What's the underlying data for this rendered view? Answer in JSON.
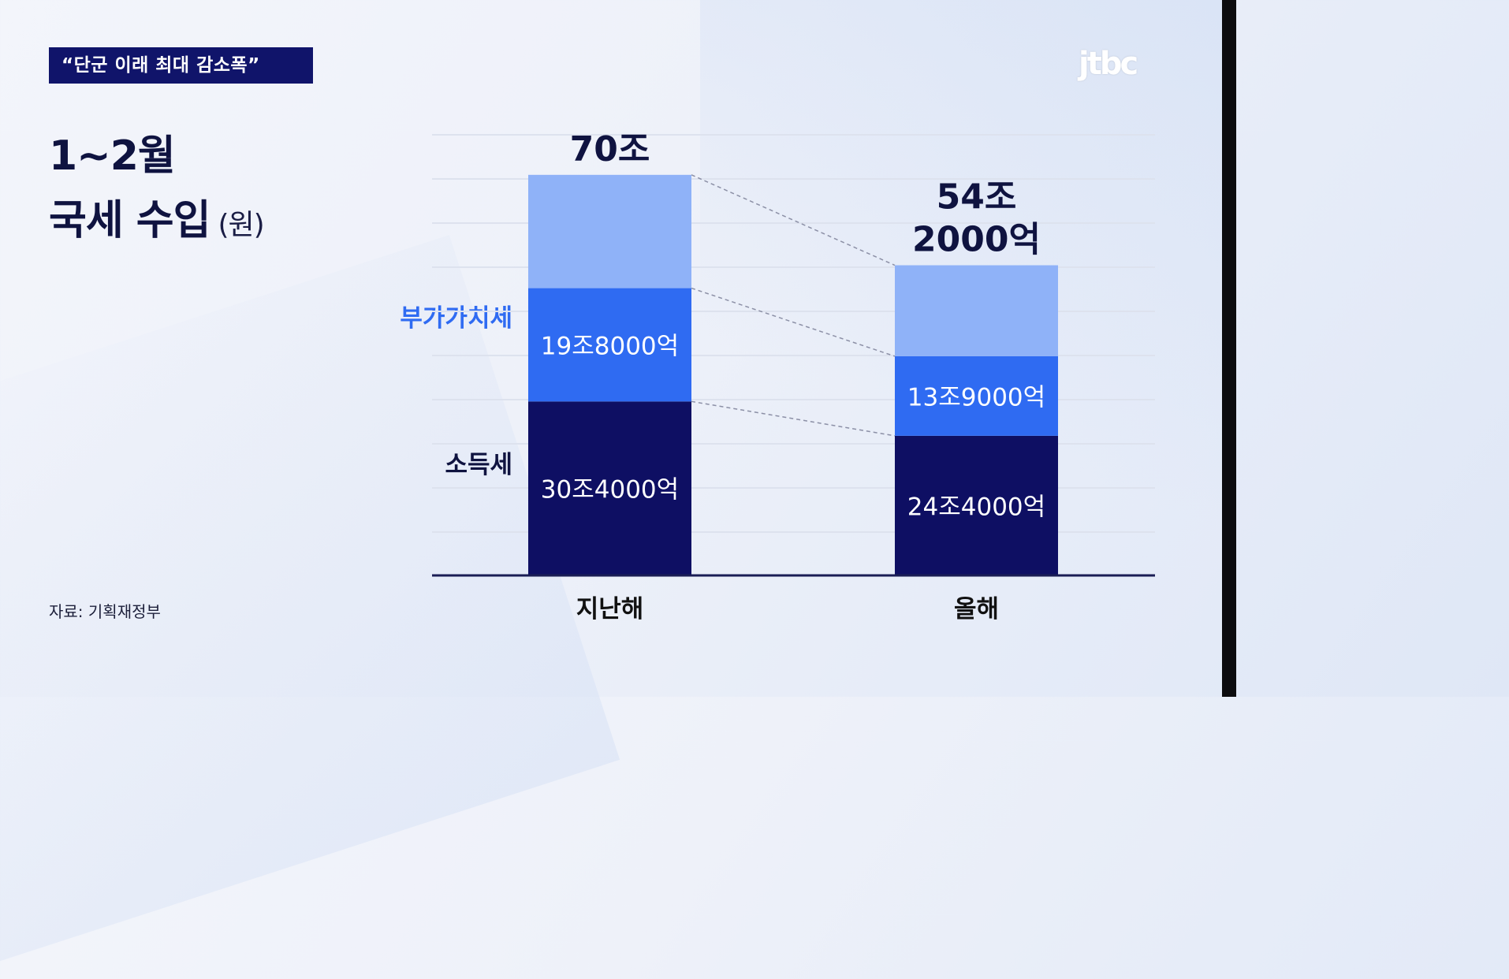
{
  "headline": "“단군 이래 최대 감소폭”",
  "logo_text": "jtbc",
  "title": {
    "line1": "1~2월",
    "line2": "국세 수입",
    "unit": "(원)"
  },
  "source": "자료: 기획재정부",
  "colors": {
    "headline_bg": "#10146a",
    "income_tax": "#0e0f63",
    "vat": "#2f6bf2",
    "other": "#8fb2f8",
    "vat_label": "#2f6bf2",
    "income_label": "#0f1340"
  },
  "chart_data": {
    "type": "bar",
    "stacked": true,
    "categories": [
      "지난해",
      "올해"
    ],
    "unit": "조원",
    "series": [
      {
        "name": "소득세",
        "values": [
          30.4,
          24.4
        ],
        "labels": [
          "30조4000억",
          "24조4000억"
        ]
      },
      {
        "name": "부가가치세",
        "values": [
          19.8,
          13.9
        ],
        "labels": [
          "19조8000억",
          "13조9000억"
        ]
      },
      {
        "name": "",
        "values": [
          19.8,
          15.9
        ],
        "labels": [
          "",
          ""
        ]
      }
    ],
    "totals": [
      70.0,
      54.2
    ],
    "total_labels": [
      [
        "70조"
      ],
      [
        "54조",
        "2000억"
      ]
    ],
    "ylim": [
      0,
      77
    ],
    "grid": true,
    "connectors": true
  }
}
